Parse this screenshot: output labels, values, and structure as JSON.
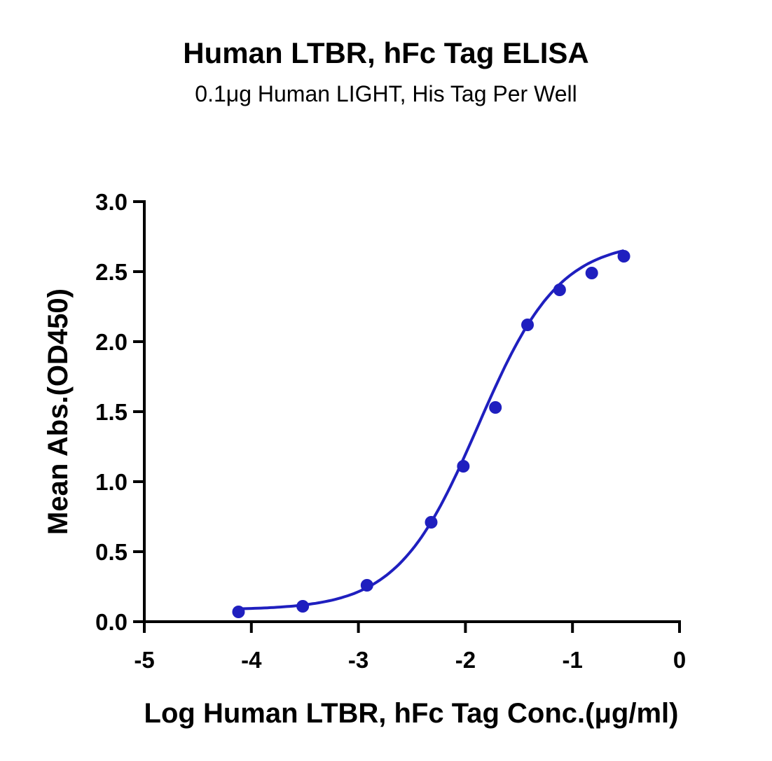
{
  "chart_data": {
    "type": "scatter",
    "title": "Human LTBR, hFc Tag ELISA",
    "subtitle": "0.1μg Human LIGHT, His Tag Per Well",
    "xlabel": "Log Human LTBR, hFc  Tag Conc.(μg/ml)",
    "ylabel": "Mean Abs.(OD450)",
    "xlim": [
      -5,
      0
    ],
    "ylim": [
      0,
      3
    ],
    "xticks": [
      -5,
      -4,
      -3,
      -2,
      -1,
      0
    ],
    "xtick_labels": [
      "-5",
      "-4",
      "-3",
      "-2",
      "-1",
      "0"
    ],
    "yticks": [
      0,
      0.5,
      1,
      1.5,
      2,
      2.5,
      3
    ],
    "ytick_labels": [
      "0.0",
      "0.5",
      "1.0",
      "1.5",
      "2.0",
      "2.5",
      "3.0"
    ],
    "grid": false,
    "color": "#1f1fbf",
    "series": [
      {
        "x": [
          -4.12,
          -3.52,
          -2.92,
          -2.32,
          -2.02,
          -1.72,
          -1.42,
          -1.12,
          -0.82,
          -0.52
        ],
        "y": [
          0.07,
          0.11,
          0.26,
          0.71,
          1.11,
          1.53,
          2.12,
          2.37,
          2.49,
          2.61
        ],
        "fit": {
          "bottom": 0.085,
          "top": 2.72,
          "logEC50": -1.88,
          "hill": 1.15
        }
      }
    ]
  }
}
